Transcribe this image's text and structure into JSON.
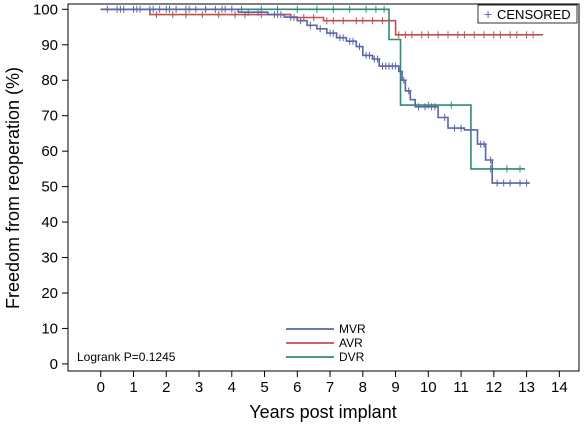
{
  "chart_data": {
    "type": "line",
    "subtype": "kaplan-meier step",
    "xlabel": "Years post implant",
    "ylabel": "Freedom from reoperation (%)",
    "xlim": [
      -1,
      14.6
    ],
    "ylim": [
      -2,
      101.5
    ],
    "xticks": [
      0,
      1,
      2,
      3,
      4,
      5,
      6,
      7,
      8,
      9,
      10,
      11,
      12,
      13,
      14
    ],
    "yticks": [
      0,
      10,
      20,
      30,
      40,
      50,
      60,
      70,
      80,
      90,
      100
    ],
    "grid": false,
    "censor_legend": {
      "symbol": "+",
      "label": "CENSORED",
      "placement": "top-right"
    },
    "series_legend_placement": "bottom-center",
    "annotation": "Logrank P=0.1245",
    "series": [
      {
        "name": "MVR",
        "color": "#5a66a8",
        "steps": [
          [
            0,
            100
          ],
          [
            4.2,
            99.2
          ],
          [
            5.1,
            98.5
          ],
          [
            5.6,
            97.8
          ],
          [
            6.0,
            96.8
          ],
          [
            6.3,
            95.5
          ],
          [
            6.6,
            94.5
          ],
          [
            6.9,
            93.3
          ],
          [
            7.2,
            92.0
          ],
          [
            7.5,
            91.0
          ],
          [
            7.8,
            89.5
          ],
          [
            8.0,
            87.0
          ],
          [
            8.3,
            86.0
          ],
          [
            8.5,
            84.0
          ],
          [
            9.1,
            82.5
          ],
          [
            9.2,
            80.0
          ],
          [
            9.3,
            77.0
          ],
          [
            9.45,
            74.5
          ],
          [
            9.6,
            72.5
          ],
          [
            10.3,
            69.5
          ],
          [
            10.6,
            66.5
          ],
          [
            11.1,
            66.0
          ],
          [
            11.5,
            62.0
          ],
          [
            11.75,
            57.5
          ],
          [
            11.95,
            51.0
          ],
          [
            13.1,
            51.0
          ]
        ],
        "censor_x": [
          0.2,
          0.5,
          0.7,
          1.0,
          1.2,
          1.5,
          1.8,
          2.0,
          2.3,
          2.6,
          2.9,
          3.2,
          3.5,
          3.8,
          4.0,
          4.5,
          4.8,
          5.3,
          5.5,
          5.8,
          6.1,
          6.4,
          6.7,
          7.0,
          7.1,
          7.3,
          7.4,
          7.6,
          7.7,
          7.9,
          8.1,
          8.2,
          8.35,
          8.45,
          8.6,
          8.7,
          8.8,
          8.9,
          9.0,
          9.25,
          9.4,
          9.7,
          9.9,
          10.1,
          10.2,
          10.5,
          10.8,
          11.0,
          11.3,
          11.6,
          11.7,
          11.9,
          12.1,
          12.3,
          12.5,
          12.8,
          13.0
        ]
      },
      {
        "name": "AVR",
        "color": "#c0504d",
        "steps": [
          [
            0,
            100
          ],
          [
            1.5,
            98.5
          ],
          [
            5.8,
            97.7
          ],
          [
            6.8,
            96.8
          ],
          [
            9.0,
            92.8
          ],
          [
            13.5,
            92.8
          ]
        ],
        "censor_x": [
          1.7,
          2.2,
          2.6,
          3.1,
          3.6,
          4.1,
          4.4,
          4.9,
          5.4,
          5.9,
          6.2,
          6.5,
          6.9,
          7.1,
          7.4,
          7.8,
          8.0,
          8.3,
          8.6,
          9.1,
          9.3,
          9.5,
          9.8,
          10.0,
          10.3,
          10.6,
          10.9,
          11.1,
          11.4,
          11.7,
          12.0,
          12.2,
          12.5,
          12.7,
          13.0,
          13.2
        ]
      },
      {
        "name": "DVR",
        "color": "#2e8b74",
        "steps": [
          [
            0,
            100
          ],
          [
            8.8,
            91.5
          ],
          [
            9.15,
            73.0
          ],
          [
            11.3,
            55.0
          ],
          [
            12.95,
            55.0
          ]
        ],
        "censor_x": [
          0.6,
          1.1,
          1.6,
          2.1,
          2.7,
          3.2,
          3.7,
          4.3,
          4.9,
          5.4,
          6.0,
          6.6,
          7.1,
          7.6,
          8.1,
          8.4,
          8.65,
          10.0,
          10.7,
          11.9,
          12.4,
          12.8
        ]
      }
    ]
  }
}
